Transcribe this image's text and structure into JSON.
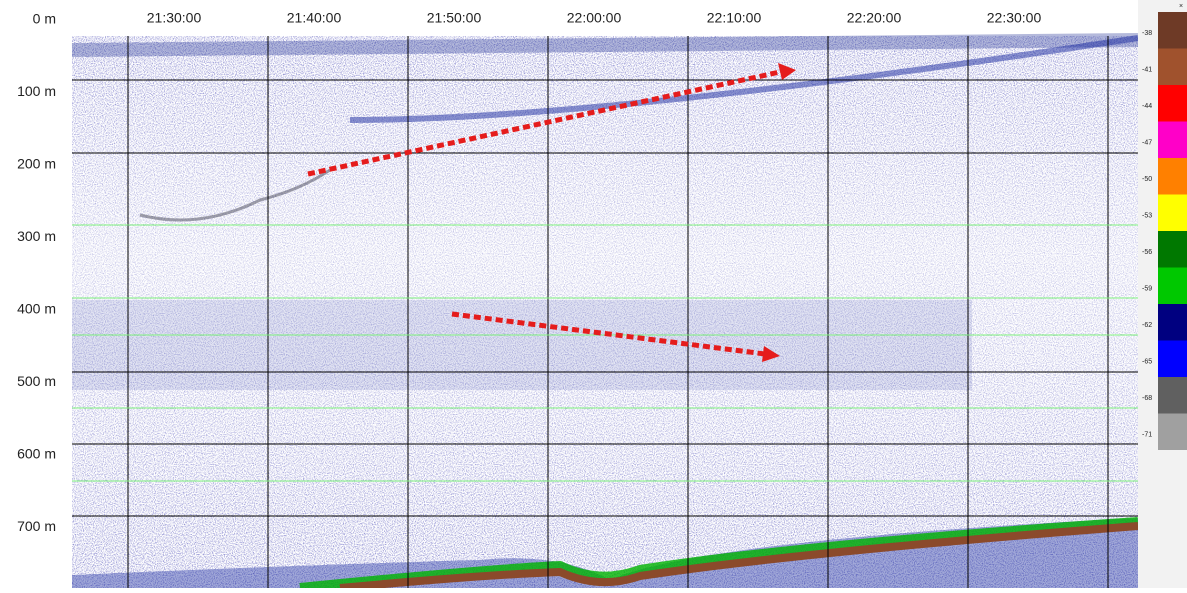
{
  "echogram": {
    "time_labels": [
      "21:30:00",
      "21:40:00",
      "21:50:00",
      "22:00:00",
      "22:10:00",
      "22:20:00",
      "22:30:00"
    ],
    "depth_labels": [
      "0 m",
      "100 m",
      "200 m",
      "300 m",
      "400 m",
      "500 m",
      "600 m",
      "700 m"
    ],
    "colorbar": {
      "close": "×",
      "labels": [
        "-38",
        "-41",
        "-44",
        "-47",
        "-50",
        "-53",
        "-56",
        "-59",
        "-62",
        "-65",
        "-68",
        "-71"
      ],
      "colors": [
        "#6e3a26",
        "#a0522d",
        "#ff0000",
        "#ff00c8",
        "#ff8000",
        "#ffff00",
        "#007800",
        "#00c800",
        "#000080",
        "#0000ff",
        "#606060",
        "#a0a0a0"
      ]
    }
  }
}
